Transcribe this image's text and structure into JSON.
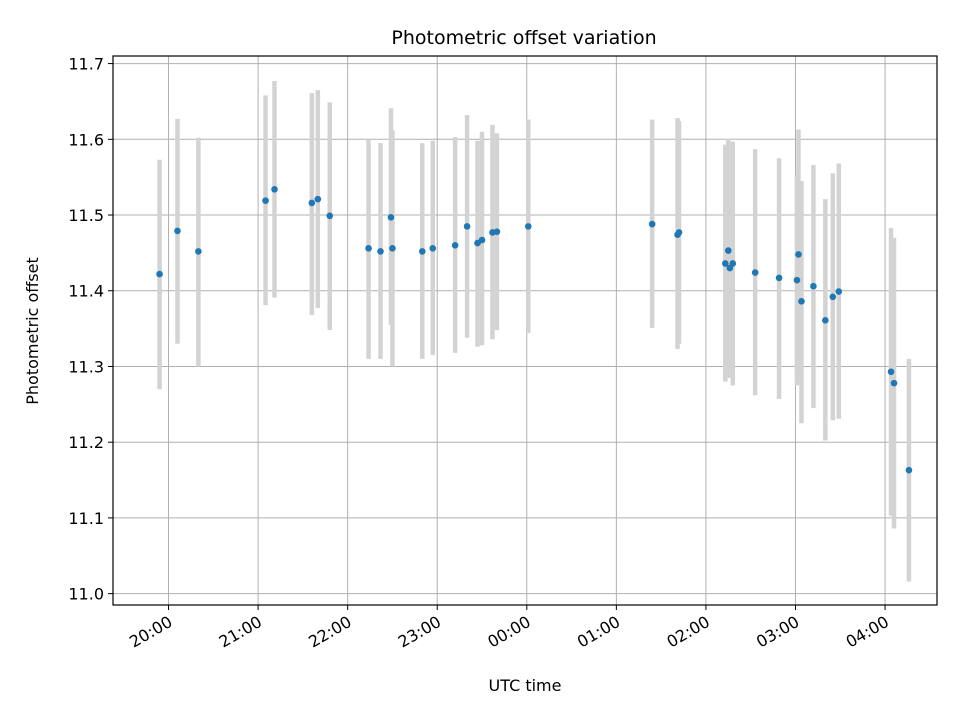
{
  "chart_data": {
    "type": "scatter",
    "title": "Photometric offset variation",
    "xlabel": "UTC time",
    "ylabel": "Photometric offset",
    "grid": true,
    "xlim_hours": [
      19.38,
      28.58
    ],
    "ylim": [
      10.985,
      11.71
    ],
    "x_ticks": [
      {
        "hour": 20,
        "label": "20:00"
      },
      {
        "hour": 21,
        "label": "21:00"
      },
      {
        "hour": 22,
        "label": "22:00"
      },
      {
        "hour": 23,
        "label": "23:00"
      },
      {
        "hour": 24,
        "label": "00:00"
      },
      {
        "hour": 25,
        "label": "01:00"
      },
      {
        "hour": 26,
        "label": "02:00"
      },
      {
        "hour": 27,
        "label": "03:00"
      },
      {
        "hour": 28,
        "label": "04:00"
      }
    ],
    "y_ticks": [
      {
        "value": 11.0,
        "label": "11.0"
      },
      {
        "value": 11.1,
        "label": "11.1"
      },
      {
        "value": 11.2,
        "label": "11.2"
      },
      {
        "value": 11.3,
        "label": "11.3"
      },
      {
        "value": 11.4,
        "label": "11.4"
      },
      {
        "value": 11.5,
        "label": "11.5"
      },
      {
        "value": 11.6,
        "label": "11.6"
      },
      {
        "value": 11.7,
        "label": "11.7"
      }
    ],
    "colors": {
      "points": "#1f77b4",
      "errorbars": "#d3d3d3",
      "grid": "#b0b0b0"
    },
    "points": [
      {
        "t": "19:54",
        "y": 11.422,
        "lo": 11.27,
        "hi": 11.573
      },
      {
        "t": "20:06",
        "y": 11.479,
        "lo": 11.33,
        "hi": 11.627
      },
      {
        "t": "20:20",
        "y": 11.452,
        "lo": 11.3,
        "hi": 11.602
      },
      {
        "t": "21:05",
        "y": 11.519,
        "lo": 11.381,
        "hi": 11.658
      },
      {
        "t": "21:11",
        "y": 11.534,
        "lo": 11.391,
        "hi": 11.677
      },
      {
        "t": "21:36",
        "y": 11.516,
        "lo": 11.368,
        "hi": 11.661
      },
      {
        "t": "21:40",
        "y": 11.521,
        "lo": 11.377,
        "hi": 11.665
      },
      {
        "t": "21:48",
        "y": 11.499,
        "lo": 11.348,
        "hi": 11.649
      },
      {
        "t": "22:14",
        "y": 11.456,
        "lo": 11.31,
        "hi": 11.6
      },
      {
        "t": "22:22",
        "y": 11.452,
        "lo": 11.31,
        "hi": 11.595
      },
      {
        "t": "22:29",
        "y": 11.497,
        "lo": 11.355,
        "hi": 11.641
      },
      {
        "t": "22:30",
        "y": 11.456,
        "lo": 11.3,
        "hi": 11.612
      },
      {
        "t": "22:50",
        "y": 11.452,
        "lo": 11.31,
        "hi": 11.595
      },
      {
        "t": "22:57",
        "y": 11.456,
        "lo": 11.315,
        "hi": 11.598
      },
      {
        "t": "23:12",
        "y": 11.46,
        "lo": 11.318,
        "hi": 11.603
      },
      {
        "t": "23:20",
        "y": 11.485,
        "lo": 11.338,
        "hi": 11.632
      },
      {
        "t": "23:27",
        "y": 11.463,
        "lo": 11.326,
        "hi": 11.598
      },
      {
        "t": "23:30",
        "y": 11.467,
        "lo": 11.328,
        "hi": 11.61
      },
      {
        "t": "23:37",
        "y": 11.477,
        "lo": 11.336,
        "hi": 11.619
      },
      {
        "t": "23:40",
        "y": 11.478,
        "lo": 11.348,
        "hi": 11.608
      },
      {
        "t": "00:01",
        "y": 11.485,
        "lo": 11.344,
        "hi": 11.626
      },
      {
        "t": "01:24",
        "y": 11.488,
        "lo": 11.351,
        "hi": 11.626
      },
      {
        "t": "01:41",
        "y": 11.474,
        "lo": 11.323,
        "hi": 11.628
      },
      {
        "t": "01:42",
        "y": 11.477,
        "lo": 11.33,
        "hi": 11.624
      },
      {
        "t": "02:13",
        "y": 11.436,
        "lo": 11.28,
        "hi": 11.593
      },
      {
        "t": "02:15",
        "y": 11.453,
        "lo": 11.3,
        "hi": 11.601
      },
      {
        "t": "02:16",
        "y": 11.43,
        "lo": 11.285,
        "hi": 11.597
      },
      {
        "t": "02:18",
        "y": 11.436,
        "lo": 11.275,
        "hi": 11.597
      },
      {
        "t": "02:33",
        "y": 11.424,
        "lo": 11.262,
        "hi": 11.587
      },
      {
        "t": "02:49",
        "y": 11.417,
        "lo": 11.257,
        "hi": 11.575
      },
      {
        "t": "03:01",
        "y": 11.414,
        "lo": 11.275,
        "hi": 11.552
      },
      {
        "t": "03:02",
        "y": 11.448,
        "lo": 11.283,
        "hi": 11.613
      },
      {
        "t": "03:04",
        "y": 11.386,
        "lo": 11.225,
        "hi": 11.545
      },
      {
        "t": "03:12",
        "y": 11.406,
        "lo": 11.245,
        "hi": 11.566
      },
      {
        "t": "03:20",
        "y": 11.361,
        "lo": 11.202,
        "hi": 11.521
      },
      {
        "t": "03:25",
        "y": 11.392,
        "lo": 11.229,
        "hi": 11.555
      },
      {
        "t": "03:29",
        "y": 11.399,
        "lo": 11.231,
        "hi": 11.568
      },
      {
        "t": "04:04",
        "y": 11.293,
        "lo": 11.103,
        "hi": 11.483
      },
      {
        "t": "04:06",
        "y": 11.278,
        "lo": 11.086,
        "hi": 11.47
      },
      {
        "t": "04:16",
        "y": 11.163,
        "lo": 11.016,
        "hi": 11.31
      }
    ]
  }
}
